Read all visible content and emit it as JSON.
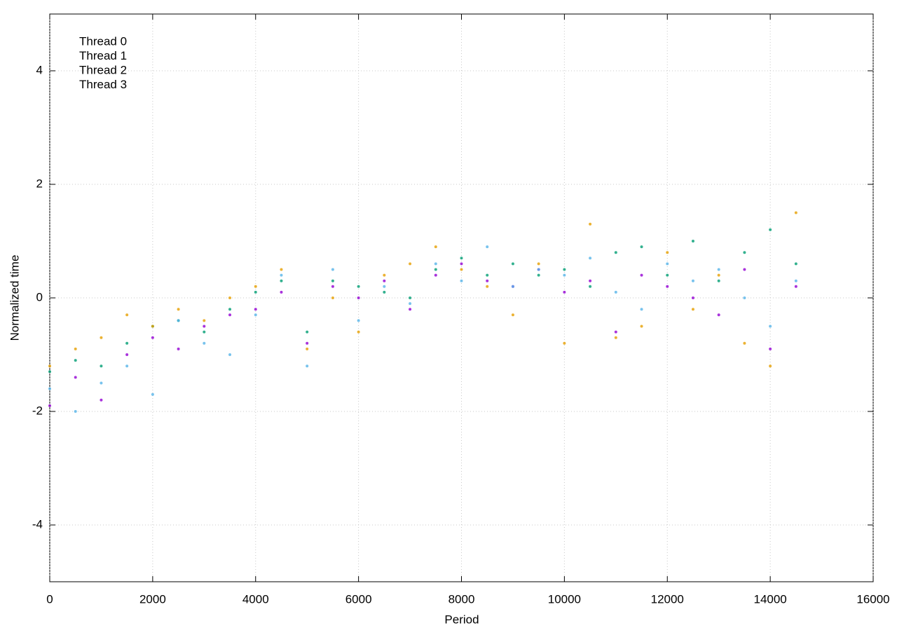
{
  "chart_data": {
    "type": "scatter",
    "x_label": "Period",
    "y_label": "Normalized time",
    "x": [
      0,
      500,
      1000,
      1500,
      2000,
      2500,
      3000,
      3500,
      4000,
      4500,
      5000,
      5500,
      6000,
      6500,
      7000,
      7500,
      8000,
      8500,
      9000,
      9500,
      10000,
      10500,
      11000,
      11500,
      12000,
      12500,
      13000,
      13500,
      14000,
      14500
    ],
    "series": [
      {
        "name": "Thread 0",
        "color": "#9400d3",
        "values": [
          -1.9,
          -1.4,
          -1.8,
          -1.0,
          -0.7,
          -0.9,
          -0.5,
          -0.3,
          -0.2,
          0.1,
          -0.8,
          0.2,
          0.0,
          0.3,
          -0.2,
          0.4,
          0.6,
          0.3,
          0.2,
          0.5,
          0.1,
          0.3,
          -0.6,
          0.4,
          0.2,
          0.0,
          -0.3,
          0.5,
          -0.9,
          0.2
        ]
      },
      {
        "name": "Thread 1",
        "color": "#009e73",
        "values": [
          -1.3,
          -1.1,
          -1.2,
          -0.8,
          -0.5,
          -0.4,
          -0.6,
          -0.2,
          0.1,
          0.3,
          -0.6,
          0.3,
          0.2,
          0.1,
          0.0,
          0.5,
          0.7,
          0.4,
          0.6,
          0.4,
          0.5,
          0.2,
          0.8,
          0.9,
          0.4,
          1.0,
          0.3,
          0.8,
          1.2,
          0.6
        ]
      },
      {
        "name": "Thread 2",
        "color": "#56b4e9",
        "values": [
          -1.6,
          -2.0,
          -1.5,
          -1.2,
          -1.7,
          -0.4,
          -0.8,
          -1.0,
          -0.3,
          0.4,
          -1.2,
          0.5,
          -0.4,
          0.2,
          -0.1,
          0.6,
          0.3,
          0.9,
          0.2,
          0.5,
          0.4,
          0.7,
          0.1,
          -0.2,
          0.6,
          0.3,
          0.5,
          0.0,
          -0.5,
          0.3
        ]
      },
      {
        "name": "Thread 3",
        "color": "#e69f00",
        "values": [
          -1.2,
          -0.9,
          -0.7,
          -0.3,
          -0.5,
          -0.2,
          -0.4,
          0.0,
          0.2,
          0.5,
          -0.9,
          0.0,
          -0.6,
          0.4,
          0.6,
          0.9,
          0.5,
          0.2,
          -0.3,
          0.6,
          -0.8,
          1.3,
          -0.7,
          -0.5,
          0.8,
          -0.2,
          0.4,
          -0.8,
          -1.2,
          1.5
        ]
      }
    ],
    "xlim": [
      0,
      16000
    ],
    "xticks": [
      0,
      2000,
      4000,
      6000,
      8000,
      10000,
      12000,
      14000,
      16000
    ],
    "ylim": [
      -5,
      5
    ],
    "yticks": [
      -4,
      -2,
      0,
      2,
      4
    ],
    "grid": true,
    "legend": "top-left"
  }
}
